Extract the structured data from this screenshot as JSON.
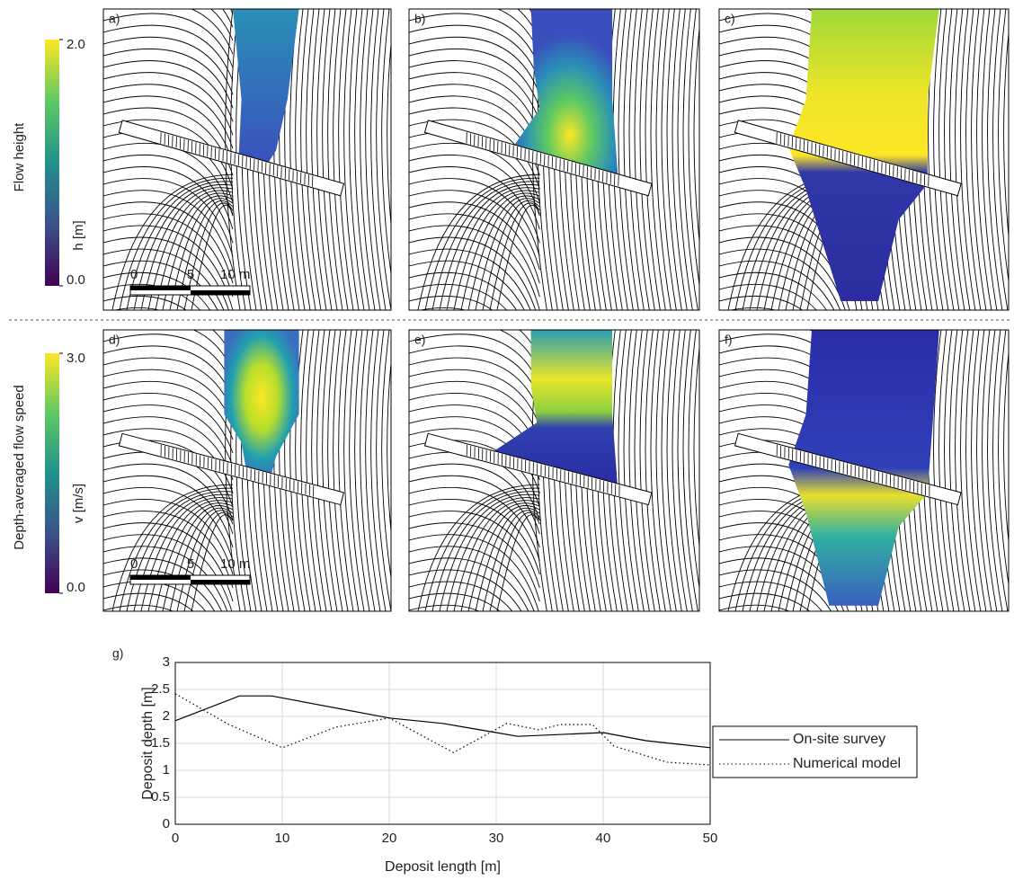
{
  "colorbars": [
    {
      "title": "Flow height",
      "label": "h [m]",
      "ticks": [
        {
          "value": 0,
          "label": "0.0"
        },
        {
          "value": 2,
          "label": "2.0"
        }
      ],
      "range": [
        0,
        2
      ]
    },
    {
      "title": "Depth-averaged flow speed",
      "label": "v [m/s]",
      "ticks": [
        {
          "value": 0,
          "label": "0.0"
        },
        {
          "value": 3,
          "label": "3.0"
        }
      ],
      "range": [
        0,
        3
      ]
    }
  ],
  "panels": [
    "a)",
    "b)",
    "c)",
    "d)",
    "e)",
    "f)"
  ],
  "scale_bar": [
    "0",
    "5",
    "10 m"
  ],
  "chart_data": {
    "type": "line",
    "panel_label": "g)",
    "xlabel": "Deposit length [m]",
    "ylabel": "Deposit depth [m]",
    "xlim": [
      0,
      50
    ],
    "ylim": [
      0,
      3
    ],
    "xticks": [
      0,
      10,
      20,
      30,
      40,
      50
    ],
    "yticks": [
      0,
      0.5,
      1,
      1.5,
      2,
      2.5,
      3
    ],
    "grid": true,
    "legend": "right",
    "series": [
      {
        "name": "On-site survey",
        "color": "#000000",
        "dash": "solid",
        "x": [
          0,
          6,
          9,
          20,
          25,
          30,
          32,
          40,
          44,
          50
        ],
        "values": [
          1.92,
          2.38,
          2.38,
          1.97,
          1.87,
          1.7,
          1.63,
          1.7,
          1.55,
          1.42
        ]
      },
      {
        "name": "Numerical model",
        "color": "#000000",
        "dash": "dotted",
        "x": [
          0,
          5,
          10,
          15,
          20,
          26,
          31,
          34,
          36,
          39,
          41,
          46,
          50
        ],
        "values": [
          2.42,
          1.85,
          1.42,
          1.8,
          1.97,
          1.33,
          1.87,
          1.75,
          1.85,
          1.85,
          1.45,
          1.15,
          1.1
        ]
      }
    ]
  }
}
